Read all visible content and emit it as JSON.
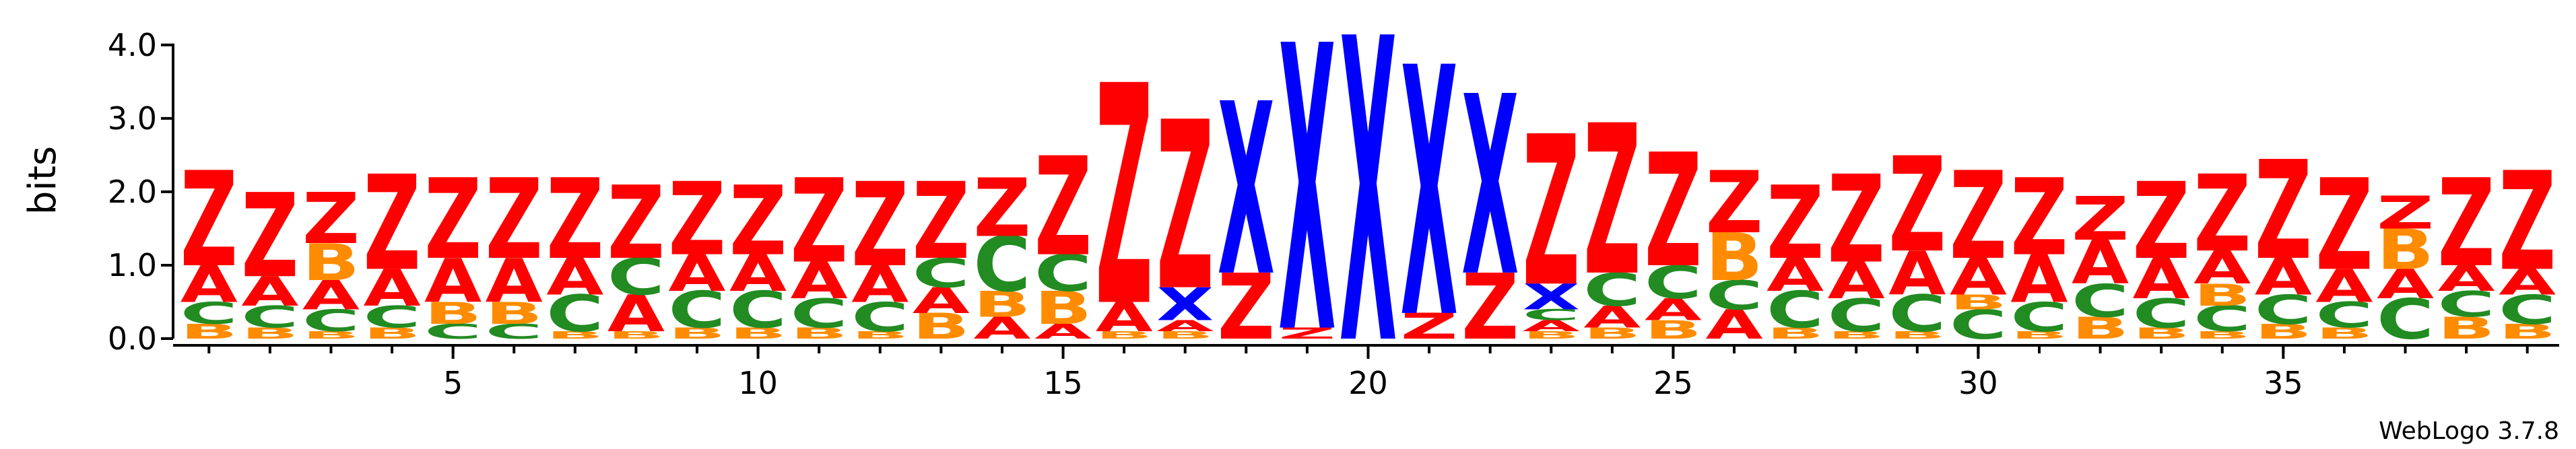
{
  "chart_data": {
    "type": "sequence-logo",
    "ylabel": "bits",
    "ylim": [
      0,
      4.2
    ],
    "yticks": [
      {
        "value": 0.0,
        "label": "0.0"
      },
      {
        "value": 1.0,
        "label": "1.0"
      },
      {
        "value": 2.0,
        "label": "2.0"
      },
      {
        "value": 3.0,
        "label": "3.0"
      },
      {
        "value": 4.0,
        "label": "4.0"
      }
    ],
    "xlim": [
      1,
      39
    ],
    "xticks": [
      {
        "value": 5,
        "label": "5"
      },
      {
        "value": 10,
        "label": "10"
      },
      {
        "value": 15,
        "label": "15"
      },
      {
        "value": 20,
        "label": "20"
      },
      {
        "value": 25,
        "label": "25"
      },
      {
        "value": 30,
        "label": "30"
      },
      {
        "value": 35,
        "label": "35"
      }
    ],
    "credit": "WebLogo 3.7.8",
    "colors": {
      "Z": "#ff0000",
      "A": "#ff0000",
      "X": "#0000ff",
      "C": "#228b22",
      "B": "#ff8c00"
    },
    "positions": [
      {
        "pos": 1,
        "stack": [
          [
            "B",
            0.2
          ],
          [
            "C",
            0.3
          ],
          [
            "A",
            0.5
          ],
          [
            "Z",
            1.3
          ]
        ]
      },
      {
        "pos": 2,
        "stack": [
          [
            "B",
            0.15
          ],
          [
            "C",
            0.3
          ],
          [
            "A",
            0.4
          ],
          [
            "Z",
            1.15
          ]
        ]
      },
      {
        "pos": 3,
        "stack": [
          [
            "B",
            0.1
          ],
          [
            "C",
            0.3
          ],
          [
            "A",
            0.4
          ],
          [
            "B",
            0.5
          ],
          [
            "Z",
            0.7
          ]
        ]
      },
      {
        "pos": 4,
        "stack": [
          [
            "B",
            0.15
          ],
          [
            "C",
            0.3
          ],
          [
            "A",
            0.5
          ],
          [
            "Z",
            1.3
          ]
        ]
      },
      {
        "pos": 5,
        "stack": [
          [
            "C",
            0.2
          ],
          [
            "B",
            0.3
          ],
          [
            "A",
            0.6
          ],
          [
            "Z",
            1.1
          ]
        ]
      },
      {
        "pos": 6,
        "stack": [
          [
            "C",
            0.2
          ],
          [
            "B",
            0.3
          ],
          [
            "A",
            0.6
          ],
          [
            "Z",
            1.1
          ]
        ]
      },
      {
        "pos": 7,
        "stack": [
          [
            "B",
            0.1
          ],
          [
            "C",
            0.5
          ],
          [
            "A",
            0.5
          ],
          [
            "Z",
            1.1
          ]
        ]
      },
      {
        "pos": 8,
        "stack": [
          [
            "B",
            0.1
          ],
          [
            "A",
            0.5
          ],
          [
            "C",
            0.5
          ],
          [
            "Z",
            1.0
          ]
        ]
      },
      {
        "pos": 9,
        "stack": [
          [
            "B",
            0.15
          ],
          [
            "C",
            0.5
          ],
          [
            "A",
            0.5
          ],
          [
            "Z",
            1.0
          ]
        ]
      },
      {
        "pos": 10,
        "stack": [
          [
            "B",
            0.15
          ],
          [
            "C",
            0.5
          ],
          [
            "A",
            0.5
          ],
          [
            "Z",
            0.95
          ]
        ]
      },
      {
        "pos": 11,
        "stack": [
          [
            "B",
            0.15
          ],
          [
            "C",
            0.4
          ],
          [
            "A",
            0.5
          ],
          [
            "Z",
            1.15
          ]
        ]
      },
      {
        "pos": 12,
        "stack": [
          [
            "B",
            0.1
          ],
          [
            "C",
            0.4
          ],
          [
            "A",
            0.5
          ],
          [
            "Z",
            1.15
          ]
        ]
      },
      {
        "pos": 13,
        "stack": [
          [
            "B",
            0.35
          ],
          [
            "A",
            0.35
          ],
          [
            "C",
            0.4
          ],
          [
            "Z",
            1.05
          ]
        ]
      },
      {
        "pos": 14,
        "stack": [
          [
            "A",
            0.3
          ],
          [
            "B",
            0.35
          ],
          [
            "C",
            0.75
          ],
          [
            "Z",
            0.8
          ]
        ]
      },
      {
        "pos": 15,
        "stack": [
          [
            "A",
            0.2
          ],
          [
            "B",
            0.45
          ],
          [
            "C",
            0.5
          ],
          [
            "Z",
            1.35
          ]
        ]
      },
      {
        "pos": 16,
        "stack": [
          [
            "B",
            0.1
          ],
          [
            "A",
            0.4
          ],
          [
            "Z",
            3.0
          ]
        ]
      },
      {
        "pos": 17,
        "stack": [
          [
            "B",
            0.1
          ],
          [
            "A",
            0.15
          ],
          [
            "X",
            0.45
          ],
          [
            "Z",
            2.3
          ]
        ]
      },
      {
        "pos": 18,
        "stack": [
          [
            "Z",
            0.9
          ],
          [
            "X",
            2.35
          ]
        ]
      },
      {
        "pos": 19,
        "stack": [
          [
            "Z",
            0.15
          ],
          [
            "X",
            3.9
          ]
        ]
      },
      {
        "pos": 20,
        "stack": [
          [
            "X",
            4.15
          ]
        ]
      },
      {
        "pos": 21,
        "stack": [
          [
            "Z",
            0.35
          ],
          [
            "X",
            3.4
          ]
        ]
      },
      {
        "pos": 22,
        "stack": [
          [
            "Z",
            0.9
          ],
          [
            "X",
            2.45
          ]
        ]
      },
      {
        "pos": 23,
        "stack": [
          [
            "B",
            0.1
          ],
          [
            "A",
            0.15
          ],
          [
            "C",
            0.15
          ],
          [
            "X",
            0.35
          ],
          [
            "Z",
            2.05
          ]
        ]
      },
      {
        "pos": 24,
        "stack": [
          [
            "B",
            0.15
          ],
          [
            "A",
            0.3
          ],
          [
            "C",
            0.45
          ],
          [
            "Z",
            2.05
          ]
        ]
      },
      {
        "pos": 25,
        "stack": [
          [
            "B",
            0.25
          ],
          [
            "A",
            0.3
          ],
          [
            "C",
            0.45
          ],
          [
            "Z",
            1.55
          ]
        ]
      },
      {
        "pos": 26,
        "stack": [
          [
            "A",
            0.4
          ],
          [
            "C",
            0.4
          ],
          [
            "B",
            0.65
          ],
          [
            "Z",
            0.85
          ]
        ]
      },
      {
        "pos": 27,
        "stack": [
          [
            "B",
            0.15
          ],
          [
            "C",
            0.5
          ],
          [
            "A",
            0.45
          ],
          [
            "Z",
            1.0
          ]
        ]
      },
      {
        "pos": 28,
        "stack": [
          [
            "B",
            0.1
          ],
          [
            "C",
            0.45
          ],
          [
            "A",
            0.5
          ],
          [
            "Z",
            1.2
          ]
        ]
      },
      {
        "pos": 29,
        "stack": [
          [
            "B",
            0.1
          ],
          [
            "C",
            0.5
          ],
          [
            "A",
            0.6
          ],
          [
            "Z",
            1.3
          ]
        ]
      },
      {
        "pos": 30,
        "stack": [
          [
            "C",
            0.4
          ],
          [
            "B",
            0.2
          ],
          [
            "A",
            0.5
          ],
          [
            "Z",
            1.2
          ]
        ]
      },
      {
        "pos": 31,
        "stack": [
          [
            "B",
            0.1
          ],
          [
            "C",
            0.4
          ],
          [
            "A",
            0.65
          ],
          [
            "Z",
            1.05
          ]
        ]
      },
      {
        "pos": 32,
        "stack": [
          [
            "B",
            0.3
          ],
          [
            "C",
            0.45
          ],
          [
            "A",
            0.6
          ],
          [
            "Z",
            0.6
          ]
        ]
      },
      {
        "pos": 33,
        "stack": [
          [
            "B",
            0.15
          ],
          [
            "C",
            0.4
          ],
          [
            "A",
            0.55
          ],
          [
            "Z",
            1.05
          ]
        ]
      },
      {
        "pos": 34,
        "stack": [
          [
            "B",
            0.1
          ],
          [
            "C",
            0.35
          ],
          [
            "B",
            0.3
          ],
          [
            "A",
            0.45
          ],
          [
            "Z",
            1.05
          ]
        ]
      },
      {
        "pos": 35,
        "stack": [
          [
            "B",
            0.2
          ],
          [
            "C",
            0.4
          ],
          [
            "A",
            0.5
          ],
          [
            "Z",
            1.35
          ]
        ]
      },
      {
        "pos": 36,
        "stack": [
          [
            "B",
            0.15
          ],
          [
            "C",
            0.35
          ],
          [
            "A",
            0.45
          ],
          [
            "Z",
            1.25
          ]
        ]
      },
      {
        "pos": 37,
        "stack": [
          [
            "C",
            0.55
          ],
          [
            "A",
            0.4
          ],
          [
            "B",
            0.55
          ],
          [
            "Z",
            0.45
          ]
        ]
      },
      {
        "pos": 38,
        "stack": [
          [
            "B",
            0.3
          ],
          [
            "C",
            0.35
          ],
          [
            "A",
            0.35
          ],
          [
            "Z",
            1.2
          ]
        ]
      },
      {
        "pos": 39,
        "stack": [
          [
            "B",
            0.2
          ],
          [
            "C",
            0.4
          ],
          [
            "A",
            0.35
          ],
          [
            "Z",
            1.35
          ]
        ]
      }
    ]
  }
}
